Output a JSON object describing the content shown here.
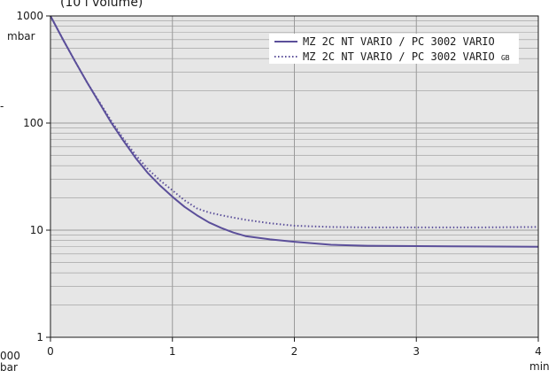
{
  "header_fragment": "(10 l volume)",
  "left_fragment": {
    "top_mark": "-",
    "bottom_tick": "000",
    "bottom_unit": "bar"
  },
  "chart_data": {
    "type": "line",
    "title": "",
    "xlabel": "",
    "ylabel": "",
    "x_unit": "min",
    "y_unit": "mbar",
    "xlim": [
      0,
      4
    ],
    "ylim": [
      1,
      1000
    ],
    "y_scale": "log",
    "grid": true,
    "legend_position": "top-right",
    "x_ticks": [
      0,
      1,
      2,
      3,
      4
    ],
    "x_tick_labels": [
      "0",
      "1",
      "2",
      "3",
      "4"
    ],
    "y_ticks": [
      1,
      10,
      100,
      1000
    ],
    "y_tick_labels": [
      "1",
      "10",
      "100",
      "1000"
    ],
    "colors": {
      "plot_background": "#e6e6e6",
      "grid": "#9a9a9a",
      "series": "#5b4f9a",
      "frame": "#1a1a1a"
    },
    "series": [
      {
        "name": "MZ 2C NT VARIO / PC 3002 VARIO",
        "suffix": "",
        "style": "solid",
        "x": [
          0,
          0.1,
          0.2,
          0.3,
          0.4,
          0.5,
          0.6,
          0.7,
          0.8,
          0.9,
          1.0,
          1.1,
          1.2,
          1.3,
          1.4,
          1.5,
          1.6,
          1.8,
          2.0,
          2.3,
          2.6,
          3.0,
          3.5,
          4.0
        ],
        "y": [
          1000,
          610,
          380,
          240,
          155,
          100,
          68,
          47,
          34,
          26,
          20.5,
          16.5,
          13.8,
          11.8,
          10.5,
          9.5,
          8.8,
          8.2,
          7.8,
          7.3,
          7.15,
          7.1,
          7.05,
          7.0
        ]
      },
      {
        "name": "MZ 2C NT VARIO / PC 3002 VARIO",
        "suffix": "GB",
        "style": "dotted",
        "x": [
          0,
          0.1,
          0.2,
          0.3,
          0.4,
          0.5,
          0.6,
          0.7,
          0.8,
          0.9,
          1.0,
          1.1,
          1.2,
          1.3,
          1.4,
          1.5,
          1.6,
          1.8,
          2.0,
          2.3,
          2.6,
          3.0,
          3.5,
          4.0
        ],
        "y": [
          1000,
          610,
          380,
          240,
          158,
          104,
          71,
          50,
          37,
          29,
          23.5,
          19,
          16,
          14.6,
          13.8,
          13.1,
          12.5,
          11.6,
          11.0,
          10.7,
          10.6,
          10.6,
          10.6,
          10.7
        ]
      }
    ]
  }
}
